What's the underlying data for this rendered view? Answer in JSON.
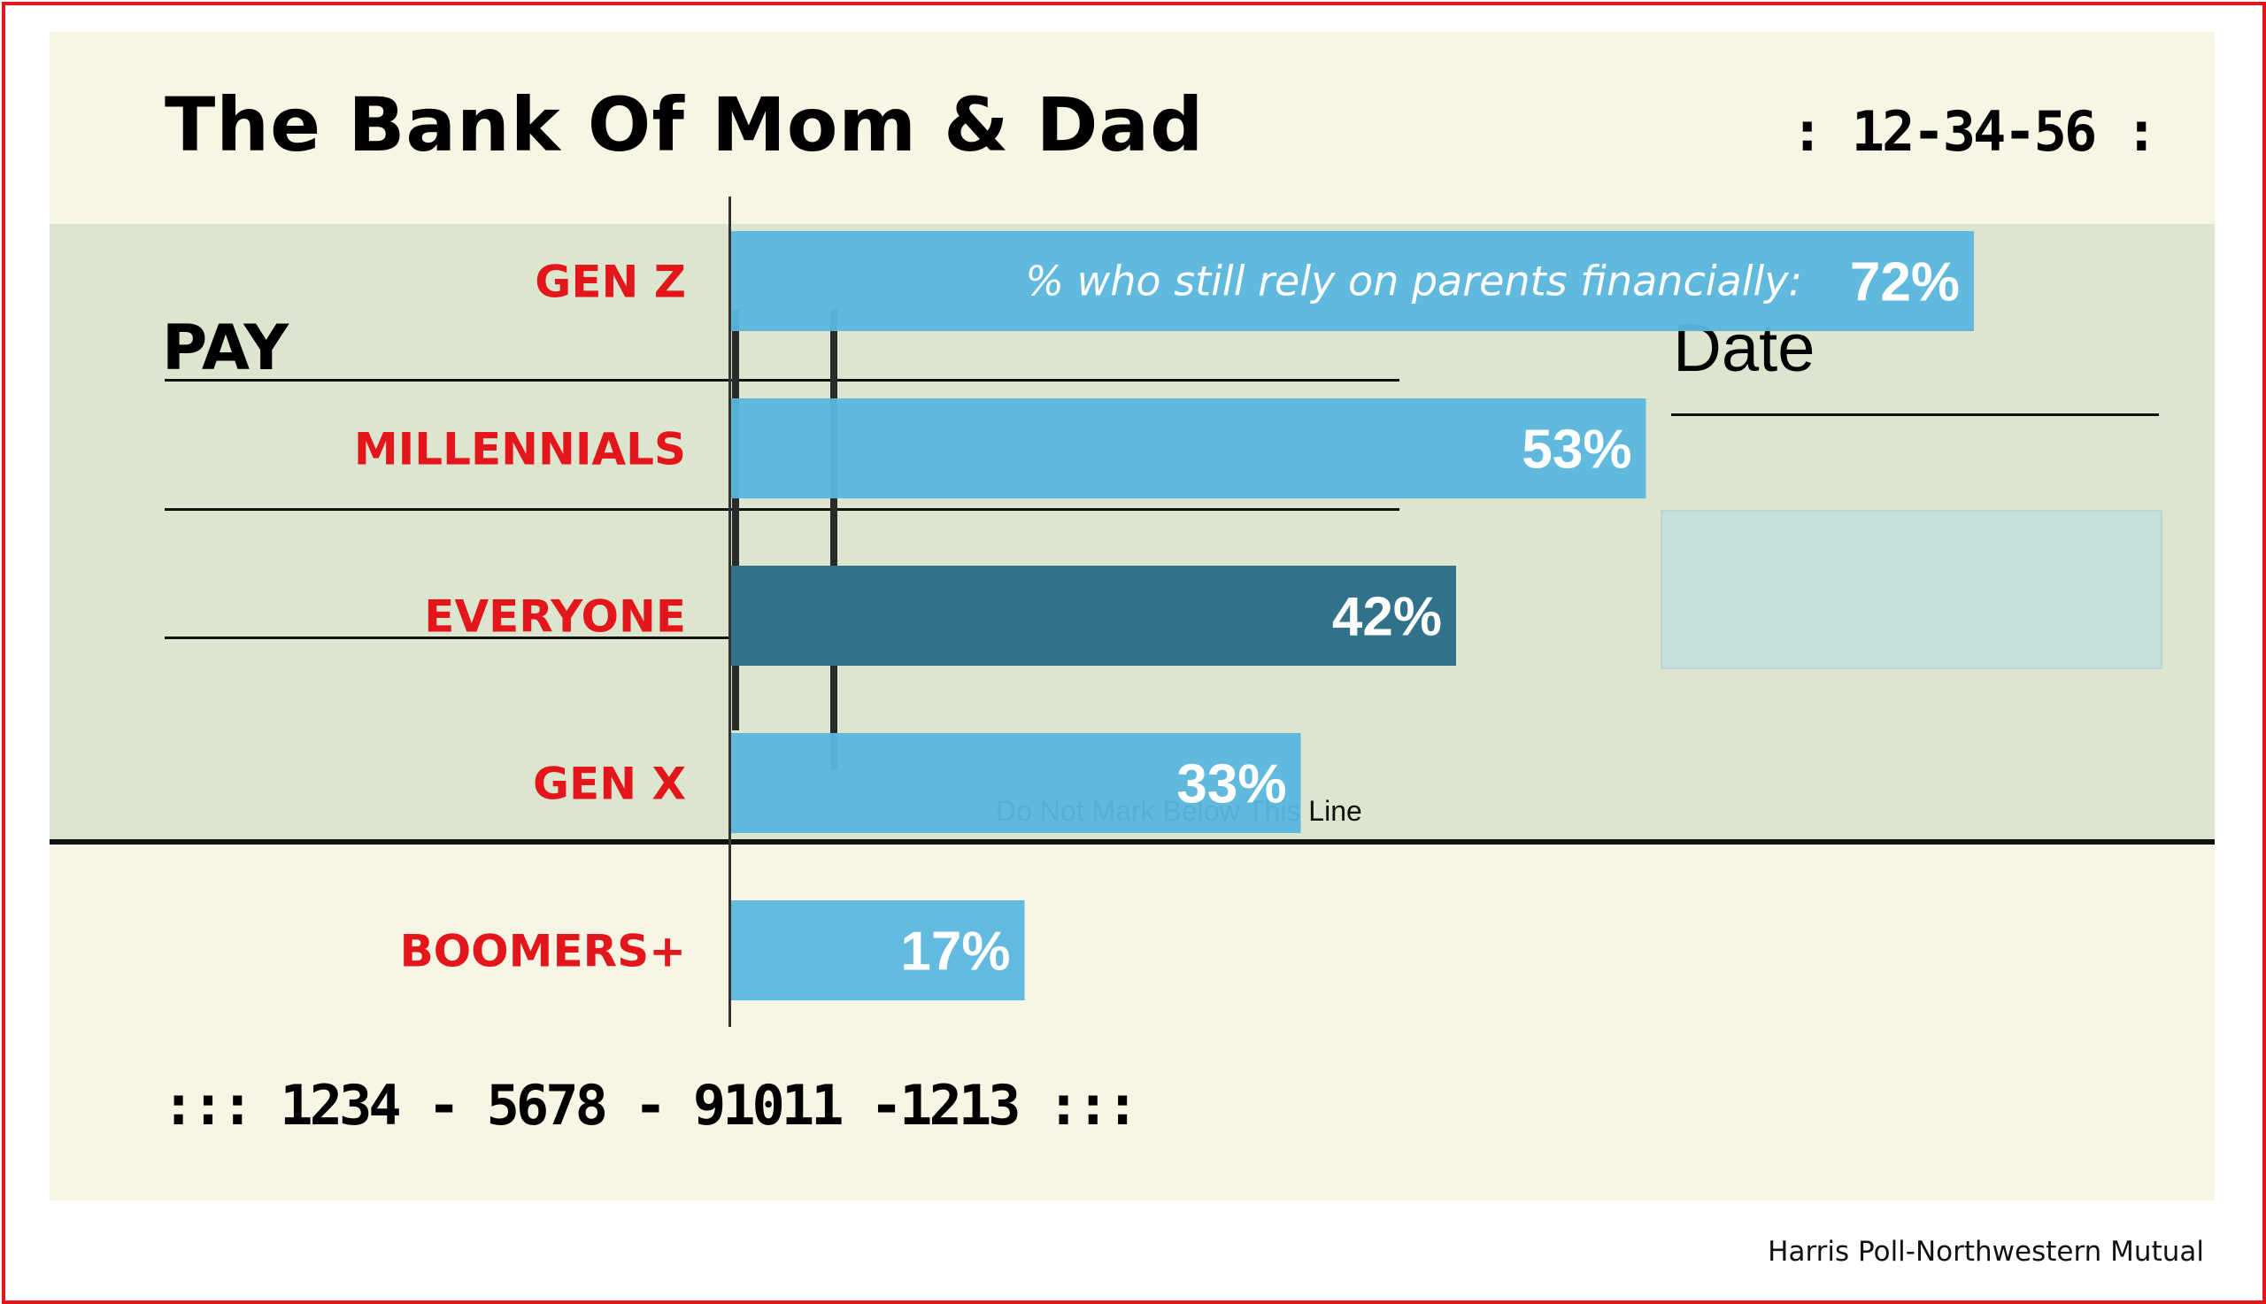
{
  "check": {
    "bank_name": "The Bank Of Mom & Dad",
    "routing_top": ": 12-34-56 :",
    "pay_label": "PAY",
    "date_label": "Date",
    "do_not_mark": "Do Not Mark Below This Line",
    "micr": "::: 1234 - 5678 - 91011 -1213 :::"
  },
  "source": "Harris Poll-Northwestern Mutual",
  "colors": {
    "bar": "#5ab7de",
    "bar_highlight": "#31718a",
    "category_label": "#e3161b",
    "frame": "#e3161b"
  },
  "chart_data": {
    "type": "bar",
    "orientation": "horizontal",
    "title": "",
    "annotation": "% who still rely on parents financially:",
    "categories": [
      "GEN Z",
      "MILLENNIALS",
      "EVERYONE",
      "GEN X",
      "BOOMERS+"
    ],
    "values": [
      72,
      53,
      42,
      33,
      17
    ],
    "value_labels": [
      "72%",
      "53%",
      "42%",
      "33%",
      "17%"
    ],
    "highlight_category": "EVERYONE",
    "xlim": [
      0,
      100
    ],
    "unit": "%",
    "grid": false,
    "legend": "none"
  }
}
